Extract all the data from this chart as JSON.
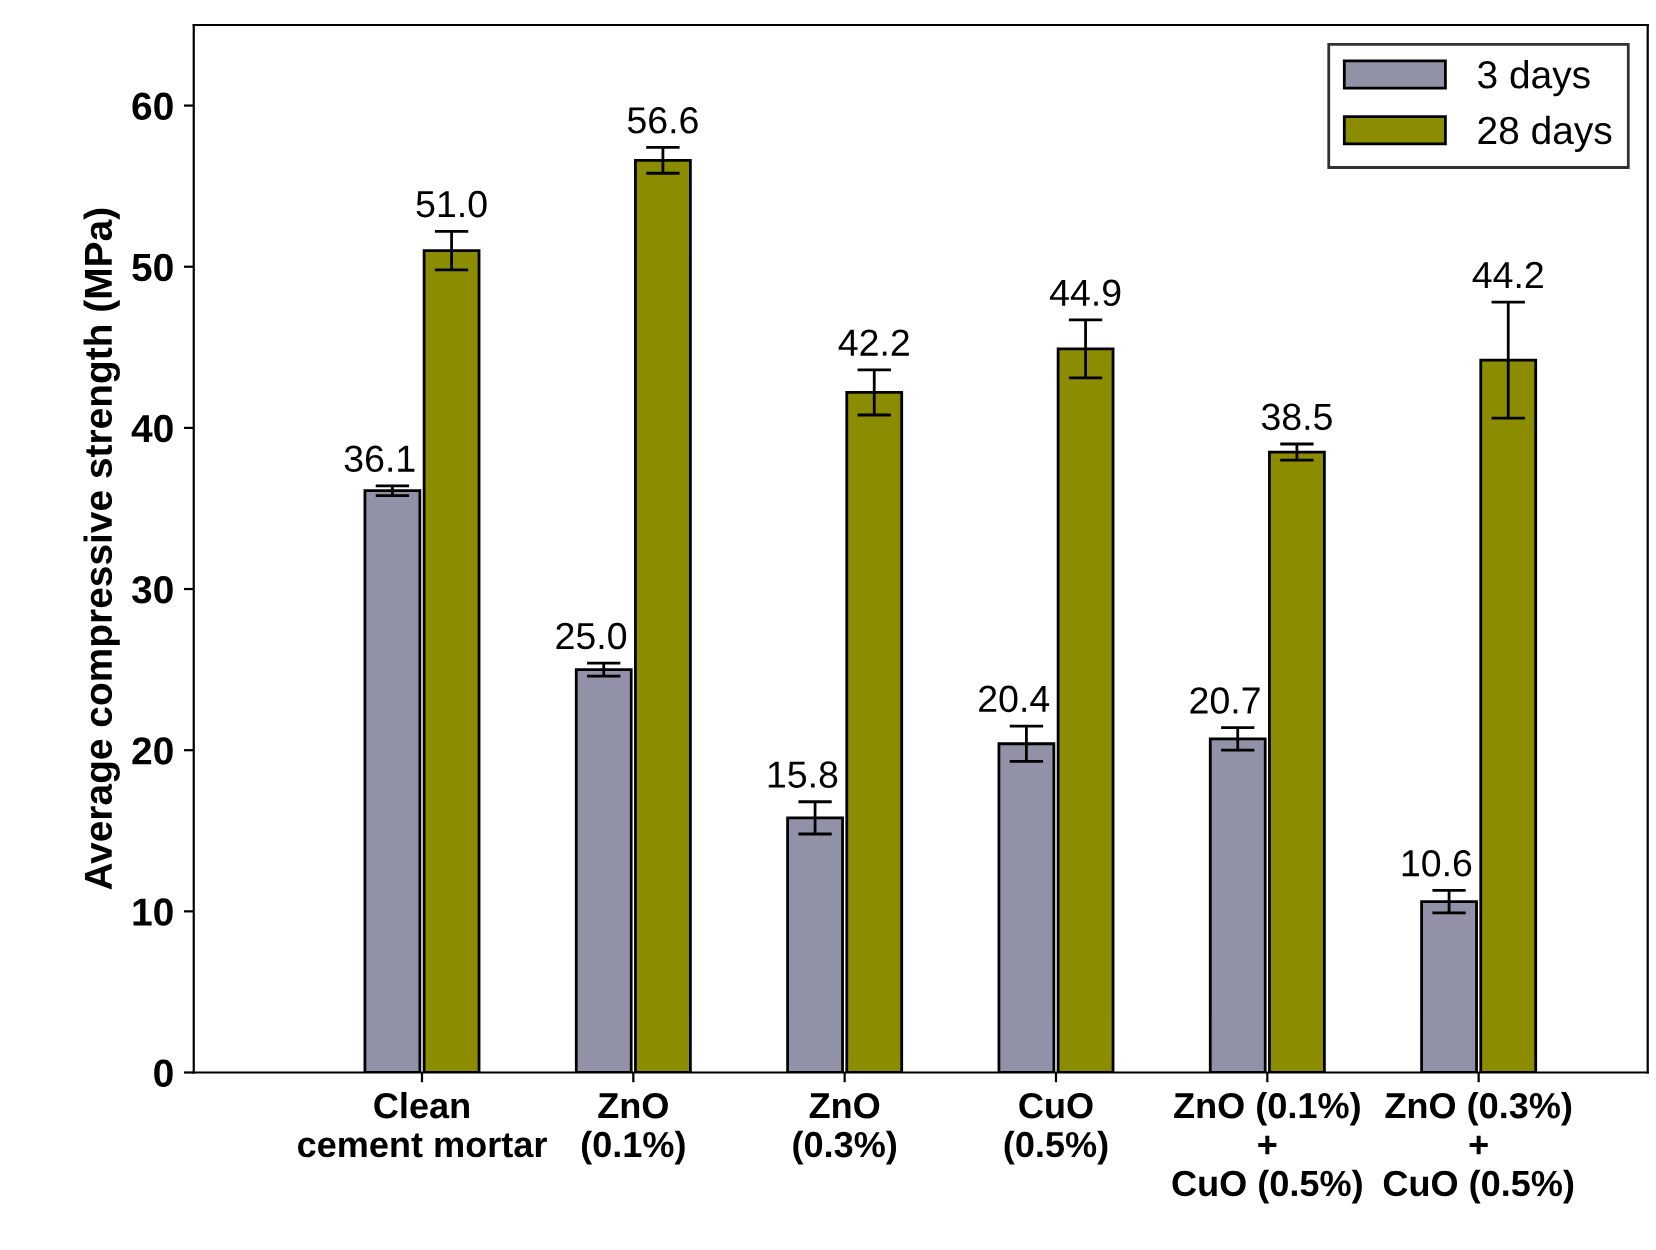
{
  "chart_data": {
    "type": "bar",
    "ylabel": "Average compressive strength (MPa)",
    "categories": [
      "Clean\ncement mortar",
      "ZnO\n(0.1%)",
      "ZnO\n(0.3%)",
      "CuO\n(0.5%)",
      "ZnO (0.1%)\n+\nCuO (0.5%)",
      "ZnO (0.3%)\n+\nCuO (0.5%)"
    ],
    "series": [
      {
        "name": "3 days",
        "color": "#9191a8",
        "values": [
          36.1,
          25.0,
          15.8,
          20.4,
          20.7,
          10.6
        ],
        "errors": [
          0.3,
          0.4,
          1.0,
          1.1,
          0.7,
          0.7
        ],
        "value_labels": [
          "36.1",
          "25.0",
          "15.8",
          "20.4",
          "20.7",
          "10.6"
        ]
      },
      {
        "name": "28 days",
        "color": "#8c8c00",
        "values": [
          51.0,
          56.6,
          42.2,
          44.9,
          38.5,
          44.2
        ],
        "errors": [
          1.2,
          0.8,
          1.4,
          1.8,
          0.5,
          3.6
        ],
        "value_labels": [
          "51.0",
          "56.6",
          "42.2",
          "44.9",
          "38.5",
          "44.2"
        ]
      }
    ],
    "ylim": [
      0,
      65
    ],
    "yticks": [
      0,
      10,
      20,
      30,
      40,
      50,
      60
    ],
    "grid": false,
    "legend": "top right"
  }
}
